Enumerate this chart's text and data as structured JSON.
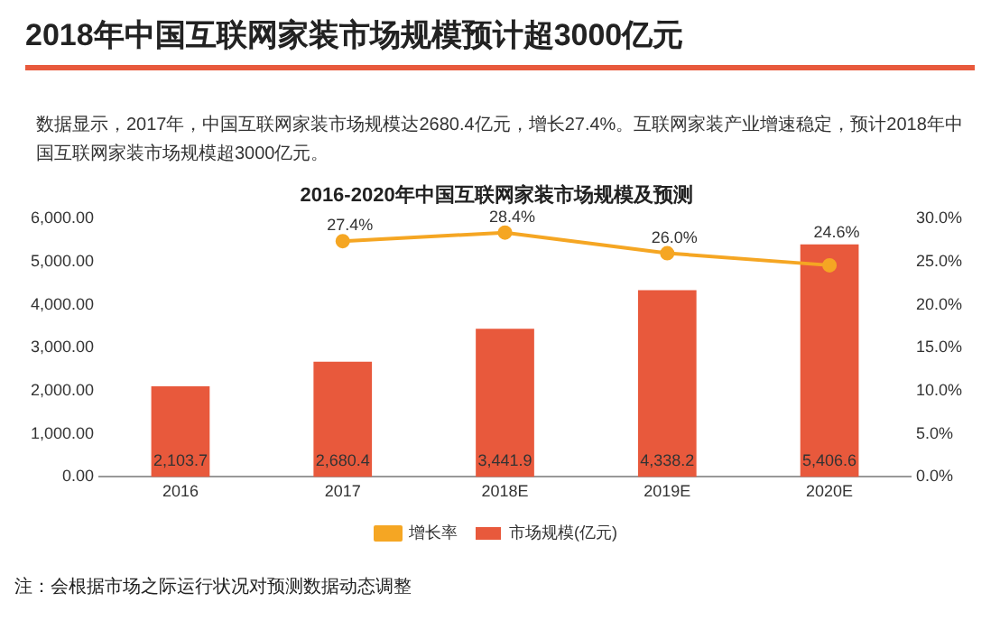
{
  "chart_data": {
    "type": "bar",
    "title": "2016-2020年中国互联网家装市场规模及预测",
    "subtitle": "2018年中国互联网家装市场规模预计超3000亿元",
    "annotations": [
      "数据显示，2017年，中国互联网家装市场规模达2680.4亿元，增长27.4%。互联网家装产业增速稳定，预计2018年中国互联网家装市场规模超3000亿元。",
      "注：会根据市场之际运行状况对预测数据动态调整"
    ],
    "categories": [
      "2016",
      "2017",
      "2018E",
      "2019E",
      "2020E"
    ],
    "series": [
      {
        "name": "市场规模(亿元)",
        "color": "#e8593c",
        "values": [
          2103.7,
          2680.4,
          3441.9,
          4338.2,
          5406.6
        ],
        "value_labels": [
          "2,103.7",
          "2,680.4",
          "3,441.9",
          "4,338.2",
          "5,406.6"
        ]
      },
      {
        "name": "增长率",
        "type": "line",
        "axis": "y2",
        "color": "#f5a623",
        "marker": "circle",
        "values": [
          null,
          27.4,
          28.4,
          26.0,
          24.6
        ],
        "value_labels": [
          null,
          "27.4%",
          "28.4%",
          "26.0%",
          "24.6%"
        ]
      }
    ],
    "ylim": [
      0,
      6000
    ],
    "yticks": [
      {
        "value": 0,
        "label": "0.00"
      },
      {
        "value": 1000,
        "label": "1,000.00"
      },
      {
        "value": 2000,
        "label": "2,000.00"
      },
      {
        "value": 3000,
        "label": "3,000.00"
      },
      {
        "value": 4000,
        "label": "4,000.00"
      },
      {
        "value": 5000,
        "label": "5,000.00"
      },
      {
        "value": 6000,
        "label": "6,000.00"
      }
    ],
    "y2lim": [
      0,
      30
    ],
    "y2ticks": [
      {
        "value": 0,
        "label": "0.0%"
      },
      {
        "value": 5,
        "label": "5.0%"
      },
      {
        "value": 10,
        "label": "10.0%"
      },
      {
        "value": 15,
        "label": "15.0%"
      },
      {
        "value": 20,
        "label": "20.0%"
      },
      {
        "value": 25,
        "label": "25.0%"
      },
      {
        "value": 30,
        "label": "30.0%"
      }
    ],
    "grid": false,
    "legend": "bottom"
  }
}
